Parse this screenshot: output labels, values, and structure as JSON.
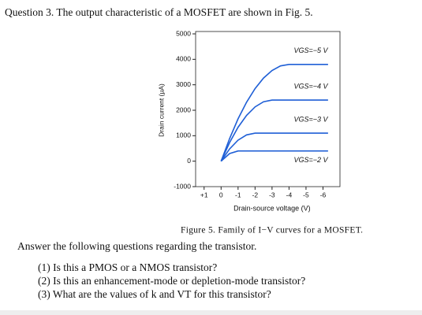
{
  "question": "Question 3. The output characteristic of a MOSFET are shown in Fig. 5.",
  "figure": {
    "chart_data": {
      "type": "line",
      "x_label": "Drain-source voltage (V)",
      "y_label": "Drain current (µA)",
      "x": [
        0,
        -0.5,
        -1,
        -1.5,
        -2,
        -2.5,
        -3,
        -3.5,
        -4,
        -5,
        -6.3
      ],
      "series": [
        {
          "name": "VGS=−5 V",
          "color": "#1f5fd6",
          "values": [
            0,
            891,
            1663,
            2316,
            2850,
            3266,
            3563,
            3741,
            3800,
            3800,
            3800
          ]
        },
        {
          "name": "VGS=−4 V",
          "color": "#1f5fd6",
          "values": [
            0,
            733,
            1333,
            1800,
            2133,
            2333,
            2400,
            2400,
            2400,
            2400,
            2400
          ]
        },
        {
          "name": "VGS=−3 V",
          "color": "#1f5fd6",
          "values": [
            0,
            481,
            825,
            1031,
            1100,
            1100,
            1100,
            1100,
            1100,
            1100,
            1100
          ]
        },
        {
          "name": "VGS=−2 V",
          "color": "#1f5fd6",
          "values": [
            0,
            300,
            400,
            400,
            400,
            400,
            400,
            400,
            400,
            400,
            400
          ]
        }
      ],
      "xlim": [
        1.5,
        -7
      ],
      "ylim": [
        -1000,
        5000
      ],
      "xticks": [
        {
          "value": 1,
          "label": "+1"
        },
        0,
        -1,
        -2,
        -3,
        -4,
        -5,
        -6
      ],
      "yticks": [
        5000,
        4000,
        3000,
        2000,
        1000,
        0,
        -1000
      ]
    }
  },
  "caption": "Figure 5. Family of I−V curves for a MOSFET.",
  "prompt": "Answer the following questions regarding the transistor.",
  "items": [
    "(1)  Is this a PMOS or a NMOS transistor?",
    "(2)  Is this an enhancement-mode or depletion-mode transistor?",
    "(3)  What are the values of k and VT for this transistor?"
  ]
}
